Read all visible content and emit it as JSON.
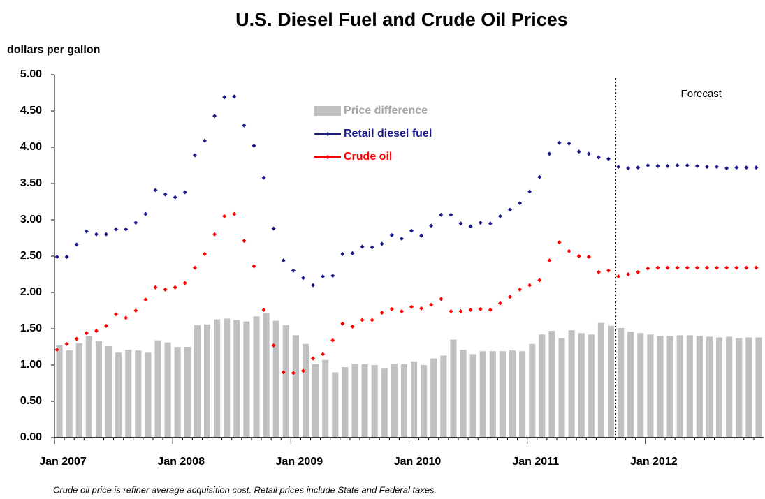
{
  "chart_data": {
    "type": "line",
    "title": "U.S. Diesel Fuel and Crude Oil Prices",
    "ylabel": "dollars per gallon",
    "footnote": "Crude oil price is refiner average acquisition cost.  Retail prices include State and Federal taxes.",
    "annotations": [
      {
        "text": "Forecast",
        "at": 57
      }
    ],
    "legend": "upper center",
    "categories": [
      "Jan 2007",
      null,
      null,
      null,
      null,
      null,
      null,
      null,
      null,
      null,
      null,
      null,
      "Jan 2008",
      null,
      null,
      null,
      null,
      null,
      null,
      null,
      null,
      null,
      null,
      null,
      "Jan 2009",
      null,
      null,
      null,
      null,
      null,
      null,
      null,
      null,
      null,
      null,
      null,
      "Jan 2010",
      null,
      null,
      null,
      null,
      null,
      null,
      null,
      null,
      null,
      null,
      null,
      "Jan 2011",
      null,
      null,
      null,
      null,
      null,
      null,
      null,
      null,
      null,
      null,
      null,
      "Jan 2012",
      null,
      null,
      null,
      null,
      null,
      null,
      null,
      null,
      null,
      null,
      null
    ],
    "series": [
      {
        "name": "Price difference",
        "type": "bar",
        "color": "#c0c0c0",
        "values": [
          1.27,
          1.2,
          1.3,
          1.4,
          1.33,
          1.26,
          1.17,
          1.21,
          1.2,
          1.17,
          1.34,
          1.31,
          1.25,
          1.25,
          1.55,
          1.56,
          1.63,
          1.64,
          1.62,
          1.6,
          1.67,
          1.72,
          1.61,
          1.55,
          1.41,
          1.29,
          1.01,
          1.07,
          0.9,
          0.97,
          1.02,
          1.01,
          1.0,
          0.95,
          1.02,
          1.01,
          1.05,
          1.0,
          1.09,
          1.13,
          1.35,
          1.21,
          1.15,
          1.19,
          1.19,
          1.19,
          1.2,
          1.19,
          1.29,
          1.42,
          1.47,
          1.37,
          1.48,
          1.44,
          1.42,
          1.58,
          1.54,
          1.51,
          1.46,
          1.44,
          1.42,
          1.4,
          1.4,
          1.41,
          1.41,
          1.4,
          1.39,
          1.38,
          1.39,
          1.37,
          1.38,
          1.38
        ]
      },
      {
        "name": "Retail diesel fuel",
        "type": "line",
        "color": "#1a1a8c",
        "values": [
          2.49,
          2.49,
          2.66,
          2.84,
          2.8,
          2.8,
          2.87,
          2.87,
          2.96,
          3.08,
          3.41,
          3.35,
          3.31,
          3.38,
          3.89,
          4.09,
          4.43,
          4.69,
          4.7,
          4.3,
          4.02,
          3.58,
          2.88,
          2.44,
          2.3,
          2.2,
          2.1,
          2.22,
          2.23,
          2.53,
          2.54,
          2.63,
          2.62,
          2.67,
          2.79,
          2.74,
          2.85,
          2.78,
          2.92,
          3.07,
          3.07,
          2.95,
          2.91,
          2.96,
          2.95,
          3.05,
          3.14,
          3.23,
          3.39,
          3.59,
          3.91,
          4.06,
          4.05,
          3.94,
          3.91,
          3.86,
          3.84,
          3.73,
          3.71,
          3.72,
          3.75,
          3.74,
          3.74,
          3.75,
          3.75,
          3.74,
          3.73,
          3.73,
          3.71,
          3.72,
          3.72,
          3.72
        ]
      },
      {
        "name": "Crude oil",
        "type": "line",
        "color": "#ff0000",
        "values": [
          1.21,
          1.29,
          1.36,
          1.44,
          1.47,
          1.54,
          1.7,
          1.65,
          1.75,
          1.9,
          2.07,
          2.04,
          2.07,
          2.13,
          2.34,
          2.53,
          2.8,
          3.05,
          3.08,
          2.71,
          2.36,
          1.76,
          1.27,
          0.9,
          0.89,
          0.92,
          1.09,
          1.15,
          1.34,
          1.57,
          1.53,
          1.62,
          1.62,
          1.72,
          1.77,
          1.74,
          1.8,
          1.78,
          1.83,
          1.91,
          1.74,
          1.74,
          1.76,
          1.77,
          1.76,
          1.85,
          1.94,
          2.04,
          2.1,
          2.17,
          2.44,
          2.69,
          2.57,
          2.5,
          2.49,
          2.28,
          2.3,
          2.22,
          2.25,
          2.28,
          2.33,
          2.34,
          2.34,
          2.34,
          2.34,
          2.34,
          2.34,
          2.34,
          2.34,
          2.34,
          2.34,
          2.34
        ]
      }
    ],
    "ylim": [
      0,
      5
    ],
    "yticks": [
      {
        "value": 0,
        "label": "0.00"
      },
      {
        "value": 0.5,
        "label": "0.50"
      },
      {
        "value": 1,
        "label": "1.00"
      },
      {
        "value": 1.5,
        "label": "1.50"
      },
      {
        "value": 2,
        "label": "2.00"
      },
      {
        "value": 2.5,
        "label": "2.50"
      },
      {
        "value": 3,
        "label": "3.00"
      },
      {
        "value": 3.5,
        "label": "3.50"
      },
      {
        "value": 4,
        "label": "4.00"
      },
      {
        "value": 4.5,
        "label": "4.50"
      },
      {
        "value": 5,
        "label": "5.00"
      }
    ],
    "grid": false
  }
}
